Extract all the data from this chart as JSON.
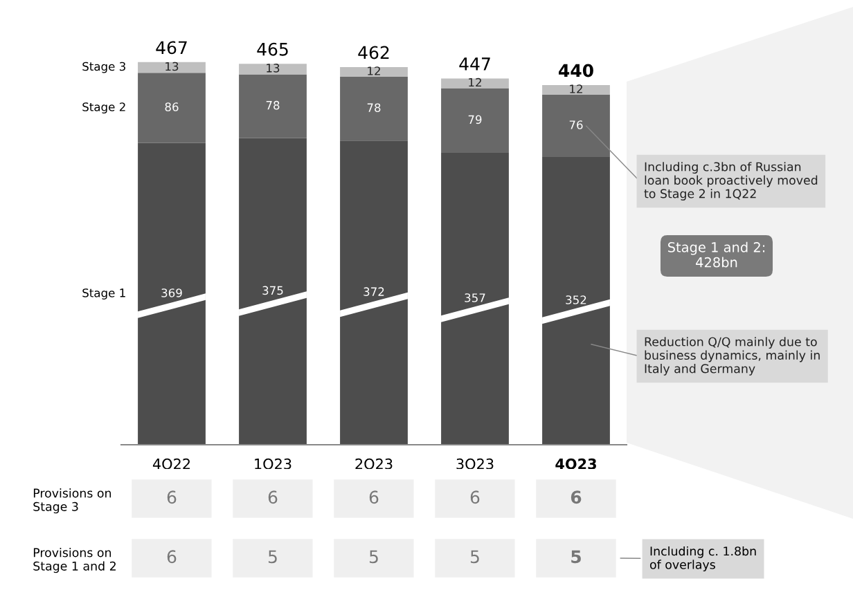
{
  "chart_data": [
    {
      "type": "bar",
      "stacked": true,
      "data_labels": true,
      "legend": false,
      "grid": false,
      "categories": [
        "4Q22",
        "1Q23",
        "2Q23",
        "3Q23",
        "4Q23"
      ],
      "series": [
        {
          "name": "Stage 1",
          "color": "#4d4d4d",
          "values": [
            369,
            375,
            372,
            357,
            352
          ]
        },
        {
          "name": "Stage 2",
          "color": "#686868",
          "values": [
            86,
            78,
            78,
            79,
            76
          ]
        },
        {
          "name": "Stage 3",
          "color": "#bfbfbf",
          "values": [
            13,
            13,
            12,
            12,
            12
          ]
        }
      ],
      "totals": [
        "467",
        "465",
        "462",
        "447",
        "440"
      ],
      "annotations": [
        "Including c.3bn of Russian\nloan book proactively moved\nto Stage 2 in 1Q22",
        "Stage 1 and 2:\n428bn",
        "Reduction Q/Q mainly due to\nbusiness dynamics, mainly in\nItaly and Germany"
      ]
    },
    {
      "type": "heatmap",
      "categories": [
        null,
        null,
        null,
        null,
        null
      ],
      "y_categories": [
        "Provisions on\nStage 3",
        "Provisions on\nStage 1 and 2"
      ],
      "cells": [
        [
          6,
          6,
          6,
          6,
          6
        ],
        [
          6,
          5,
          5,
          5,
          5
        ]
      ],
      "color": "#efefef",
      "data_labels": true,
      "annotations": [
        "Including c. 1.8bn\nof overlays"
      ]
    }
  ]
}
